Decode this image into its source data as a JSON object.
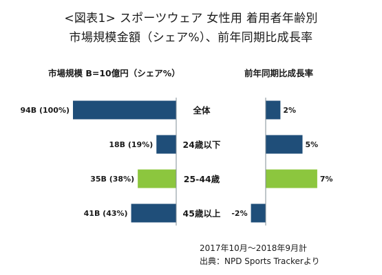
{
  "title_line1": "<図表1> スポーツウェア 女性用 着用者年齢別",
  "title_line2": "市場規模金額（シェア%）、前年同期比成長率",
  "footnote_period": "2017年10月～2018年9月計",
  "footnote_source": "出典：NPD Sports Trackerより",
  "colors": {
    "navy": "#1f4e79",
    "green": "#8cc63e",
    "axis": "#7f8c96"
  },
  "chart_data": [
    {
      "type": "bar",
      "orientation": "horizontal",
      "title": "市場規模 B=10億円（シェア%）",
      "categories": [
        "全体",
        "24歳以下",
        "25-44歳",
        "45歳以上"
      ],
      "values": [
        94,
        18,
        35,
        41
      ],
      "data_labels": [
        "94B (100%)",
        "18B (19%)",
        "35B (38%)",
        "41B (43%)"
      ],
      "bar_colors": [
        "#1f4e79",
        "#1f4e79",
        "#8cc63e",
        "#1f4e79"
      ],
      "xlim": [
        0,
        94
      ]
    },
    {
      "type": "bar",
      "orientation": "horizontal",
      "title": "前年同期比成長率",
      "categories": [
        "全体",
        "24歳以下",
        "25-44歳",
        "45歳以上"
      ],
      "values": [
        2,
        5,
        7,
        -2
      ],
      "data_labels": [
        "2%",
        "5%",
        "7%",
        "-2%"
      ],
      "bar_colors": [
        "#1f4e79",
        "#1f4e79",
        "#8cc63e",
        "#1f4e79"
      ],
      "xlim": [
        -2,
        7
      ]
    }
  ]
}
